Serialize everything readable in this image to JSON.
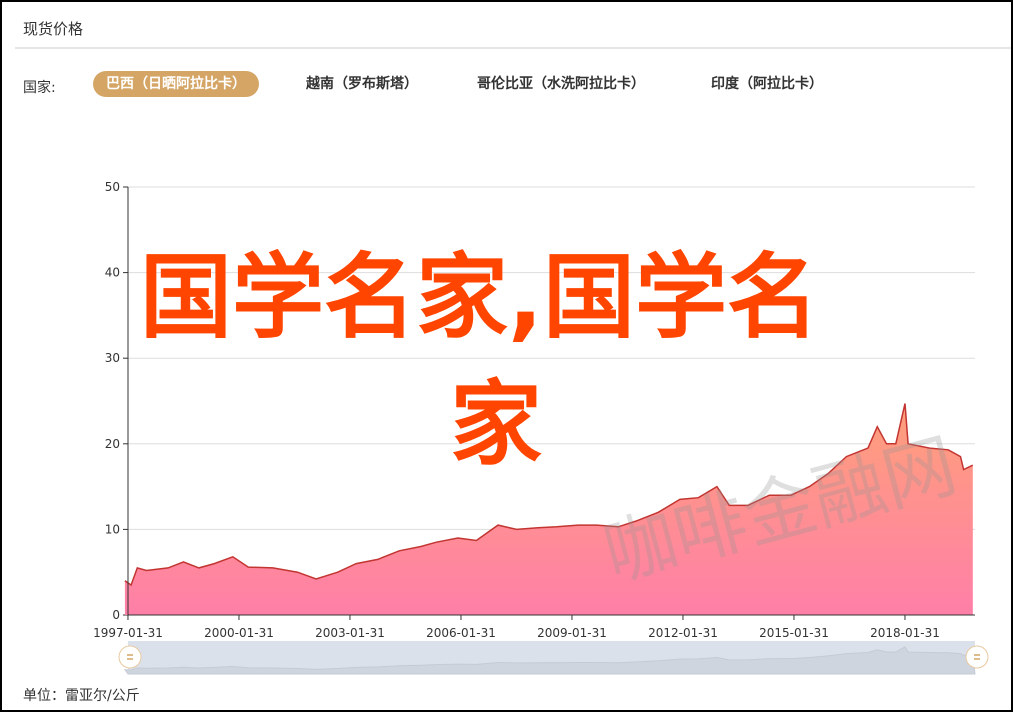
{
  "title": "现货价格",
  "country_label": "国家:",
  "tabs": [
    {
      "label": "巴西（日晒阿拉比卡）",
      "active": true
    },
    {
      "label": "越南（罗布斯塔）"
    },
    {
      "label": "哥伦比亚（水洗阿拉比卡）"
    },
    {
      "label": "印度（阿拉比卡）"
    }
  ],
  "unit": "单位：雷亚尔/公斤",
  "watermark_overlay": "国学名家,国学名家",
  "watermark_site": "咖啡金融网",
  "colors": {
    "accent": "#d4a564",
    "line": "#c23531",
    "fill_top": "#ffa07a",
    "fill_bottom": "#ff7fa8",
    "overlay": "#ff4500"
  },
  "chart_data": {
    "type": "area",
    "ylim": [
      0,
      50
    ],
    "yticks": [
      "0",
      "10",
      "20",
      "30",
      "40",
      "50"
    ],
    "xticks": [
      "1997-01-31",
      "2000-01-31",
      "2003-01-31",
      "2006-01-31",
      "2009-01-31",
      "2012-01-31",
      "2015-01-31",
      "2018-01-31"
    ],
    "grid": true,
    "datazoom": {
      "start": 0,
      "end": 100
    },
    "points": [
      [
        "1997-01",
        4
      ],
      [
        "1997-03",
        3.5
      ],
      [
        "1997-05",
        5.5
      ],
      [
        "1997-08",
        5.2
      ],
      [
        "1998-03",
        5.5
      ],
      [
        "1998-08",
        6.2
      ],
      [
        "1999-01",
        5.5
      ],
      [
        "1999-06",
        6
      ],
      [
        "1999-12",
        6.8
      ],
      [
        "2000-05",
        5.6
      ],
      [
        "2001-01",
        5.5
      ],
      [
        "2001-09",
        5
      ],
      [
        "2002-03",
        4.2
      ],
      [
        "2002-10",
        5
      ],
      [
        "2003-04",
        6
      ],
      [
        "2003-11",
        6.5
      ],
      [
        "2004-06",
        7.5
      ],
      [
        "2005-01",
        8
      ],
      [
        "2005-06",
        8.5
      ],
      [
        "2006-01",
        9
      ],
      [
        "2006-07",
        8.7
      ],
      [
        "2007-02",
        10.5
      ],
      [
        "2007-08",
        10
      ],
      [
        "2008-03",
        10.2
      ],
      [
        "2008-09",
        10.3
      ],
      [
        "2009-04",
        10.5
      ],
      [
        "2009-10",
        10.5
      ],
      [
        "2010-05",
        10.3
      ],
      [
        "2010-11",
        11
      ],
      [
        "2011-06",
        12
      ],
      [
        "2012-01",
        13.5
      ],
      [
        "2012-07",
        13.7
      ],
      [
        "2013-01",
        15
      ],
      [
        "2013-05",
        12.8
      ],
      [
        "2013-11",
        12.8
      ],
      [
        "2014-06",
        14
      ],
      [
        "2015-01",
        14
      ],
      [
        "2015-07",
        15
      ],
      [
        "2016-01",
        16.5
      ],
      [
        "2016-07",
        18.5
      ],
      [
        "2017-02",
        19.5
      ],
      [
        "2017-05",
        22
      ],
      [
        "2017-08",
        20
      ],
      [
        "2017-11",
        20
      ],
      [
        "2018-02",
        24.7
      ],
      [
        "2018-03",
        20
      ],
      [
        "2018-10",
        19.5
      ],
      [
        "2019-04",
        19.3
      ],
      [
        "2019-08",
        18.5
      ],
      [
        "2019-09",
        17
      ],
      [
        "2019-12",
        17.5
      ]
    ]
  }
}
